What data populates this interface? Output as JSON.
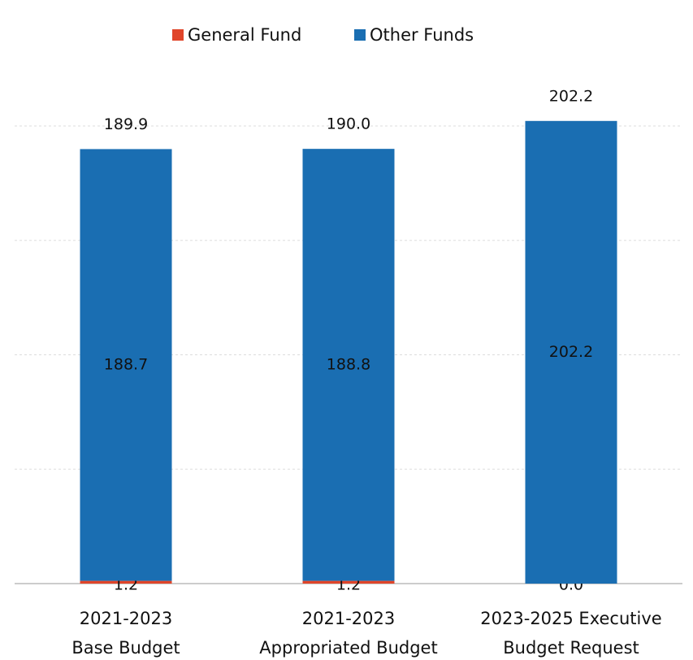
{
  "chart_data": {
    "type": "stacked_bar",
    "categories": [
      [
        "2021-2023",
        "Base Budget"
      ],
      [
        "2021-2023",
        "Appropriated Budget"
      ],
      [
        "2023-2025 Executive",
        "Budget Request"
      ]
    ],
    "series": [
      {
        "name": "General Fund",
        "color": "#e0452a",
        "values": [
          1.2,
          1.2,
          0.0
        ],
        "value_labels": [
          "1.2",
          "1.2",
          "0.0"
        ]
      },
      {
        "name": "Other Funds",
        "color": "#1a6eb2",
        "values": [
          188.7,
          188.8,
          202.2
        ],
        "value_labels": [
          "188.7",
          "188.8",
          "202.2"
        ]
      }
    ],
    "totals": [
      189.9,
      190.0,
      202.2
    ],
    "total_labels": [
      "189.9",
      "190.0",
      "202.2"
    ],
    "ylim": [
      0,
      200
    ],
    "yticks": [
      0,
      50,
      100,
      150,
      200
    ],
    "grid": true,
    "legend": "top"
  }
}
